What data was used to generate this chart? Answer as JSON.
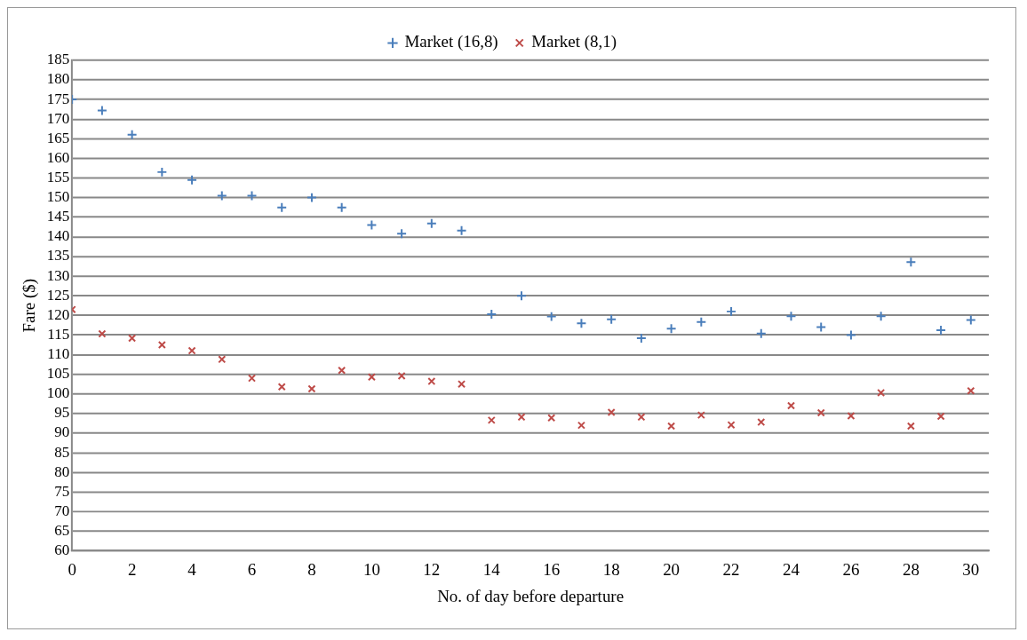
{
  "chart_data": {
    "type": "scatter",
    "xlabel": "No. of day before departure",
    "ylabel": "Fare ($)",
    "x": [
      0,
      1,
      2,
      3,
      4,
      5,
      6,
      7,
      8,
      9,
      10,
      11,
      12,
      13,
      14,
      15,
      16,
      17,
      18,
      19,
      20,
      21,
      22,
      23,
      24,
      25,
      26,
      27,
      28,
      29,
      30
    ],
    "series": [
      {
        "name": "Market (16,8)",
        "color": "#4a7ebb",
        "marker": "cross",
        "values": [
          175,
          172.2,
          166,
          156.5,
          154.5,
          150.5,
          150.5,
          147.5,
          150,
          147.5,
          143,
          140.8,
          143.4,
          141.6,
          120.3,
          125,
          119.7,
          118,
          119,
          114.2,
          116.6,
          118.3,
          121,
          115.4,
          119.8,
          117,
          115,
          119.8,
          133.6,
          116.2,
          118.8
        ]
      },
      {
        "name": "Market (8,1)",
        "color": "#be4b48",
        "marker": "x",
        "values": [
          121.5,
          115.3,
          114.2,
          112.5,
          111,
          108.8,
          104,
          101.8,
          101.3,
          106,
          104.3,
          104.6,
          103.2,
          102.5,
          93.3,
          94.1,
          93.9,
          92,
          95.3,
          94.1,
          91.8,
          94.6,
          92.1,
          92.8,
          97,
          95.2,
          94.4,
          100.3,
          91.8,
          94.3,
          100.8
        ]
      }
    ],
    "xlim": [
      0,
      30.6
    ],
    "xticks": [
      0,
      2,
      4,
      6,
      8,
      10,
      12,
      14,
      16,
      18,
      20,
      22,
      24,
      26,
      28,
      30
    ],
    "ylim": [
      60,
      185
    ],
    "yticks": [
      60,
      65,
      70,
      75,
      80,
      85,
      90,
      95,
      100,
      105,
      110,
      115,
      120,
      125,
      130,
      135,
      140,
      145,
      150,
      155,
      160,
      165,
      170,
      175,
      180,
      185
    ],
    "grid": "y",
    "legend": "top"
  }
}
